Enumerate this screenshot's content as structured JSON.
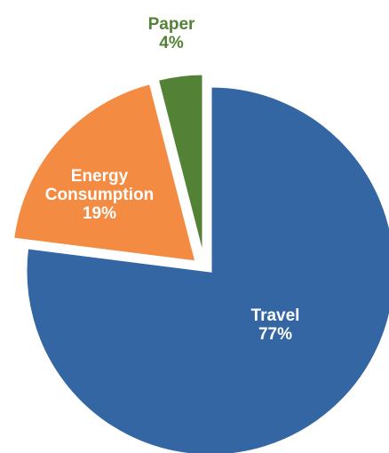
{
  "chart_data": {
    "type": "pie",
    "slices": [
      {
        "label": "Travel",
        "value": 77,
        "value_label": "77%",
        "color": "#3366A3"
      },
      {
        "label": "Energy Consumption",
        "value": 19,
        "value_label": "19%",
        "color": "#F38B42"
      },
      {
        "label": "Paper",
        "value": 4,
        "value_label": "4%",
        "color": "#538135"
      }
    ],
    "label_colors": {
      "inside": "#ffffff",
      "outside": "#538135"
    },
    "exploded": true,
    "legend": "none"
  }
}
